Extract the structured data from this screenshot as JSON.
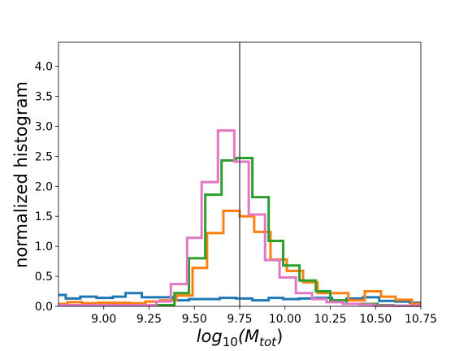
{
  "chart_data": {
    "type": "histogram",
    "title": "",
    "xlabel": {
      "base": "log",
      "base_sub": "10",
      "open": "(M",
      "sub": "tot",
      "close": ")"
    },
    "ylabel": "normalized histogram",
    "xlim": [
      8.75,
      10.75
    ],
    "ylim": [
      0,
      4.4
    ],
    "xticks": [
      9.0,
      9.25,
      9.5,
      9.75,
      10.0,
      10.25,
      10.5,
      10.75
    ],
    "xtick_labels": [
      "9.00",
      "9.25",
      "9.50",
      "9.75",
      "10.00",
      "10.25",
      "10.50",
      "10.75"
    ],
    "yticks": [
      0.0,
      0.5,
      1.0,
      1.5,
      2.0,
      2.5,
      3.0,
      3.5,
      4.0
    ],
    "ytick_labels": [
      "0.0",
      "0.5",
      "1.0",
      "1.5",
      "2.0",
      "2.5",
      "3.0",
      "3.5",
      "4.0"
    ],
    "vline": 9.75,
    "vline_color": "#555555",
    "series": [
      {
        "color": "#1f77b4",
        "edges": [
          8.75,
          8.79,
          8.87,
          8.96,
          9.05,
          9.12,
          9.21,
          9.3,
          9.38,
          9.47,
          9.56,
          9.64,
          9.73,
          9.82,
          9.91,
          9.99,
          10.08,
          10.17,
          10.26,
          10.34,
          10.43,
          10.52,
          10.61,
          10.69,
          10.75
        ],
        "values": [
          0.19,
          0.13,
          0.16,
          0.14,
          0.16,
          0.22,
          0.15,
          0.15,
          0.1,
          0.12,
          0.12,
          0.14,
          0.13,
          0.1,
          0.14,
          0.12,
          0.13,
          0.14,
          0.1,
          0.13,
          0.15,
          0.09,
          0.08,
          0.06
        ]
      },
      {
        "color": "#ff7f0e",
        "edges": [
          8.75,
          8.8,
          8.88,
          8.97,
          9.06,
          9.14,
          9.23,
          9.31,
          9.4,
          9.49,
          9.57,
          9.66,
          9.75,
          9.83,
          9.92,
          10.01,
          10.1,
          10.18,
          10.27,
          10.35,
          10.44,
          10.53,
          10.61,
          10.7,
          10.75
        ],
        "values": [
          0.04,
          0.07,
          0.05,
          0.06,
          0.06,
          0.05,
          0.08,
          0.1,
          0.18,
          0.64,
          1.22,
          1.59,
          1.5,
          1.24,
          0.78,
          0.59,
          0.4,
          0.22,
          0.22,
          0.1,
          0.25,
          0.16,
          0.11,
          0.04
        ]
      },
      {
        "color": "#2ca02c",
        "edges": [
          8.75,
          9.39,
          9.47,
          9.56,
          9.65,
          9.73,
          9.82,
          9.91,
          9.99,
          10.08,
          10.17,
          10.25,
          10.34,
          10.43,
          10.51,
          10.6,
          10.75
        ],
        "values": [
          0.02,
          0.22,
          0.8,
          1.86,
          2.43,
          2.47,
          1.82,
          1.09,
          0.68,
          0.43,
          0.25,
          0.1,
          0.04,
          0.04,
          0.02,
          0.01
        ]
      },
      {
        "color": "#e377c2",
        "edges": [
          8.75,
          9.29,
          9.37,
          9.46,
          9.54,
          9.63,
          9.72,
          9.8,
          9.89,
          9.97,
          10.06,
          10.15,
          10.23,
          10.32,
          10.41,
          10.49,
          10.75
        ],
        "values": [
          0.02,
          0.08,
          0.37,
          1.14,
          2.07,
          2.93,
          2.41,
          1.53,
          0.77,
          0.48,
          0.22,
          0.12,
          0.07,
          0.04,
          0.03,
          0.01
        ]
      }
    ]
  }
}
